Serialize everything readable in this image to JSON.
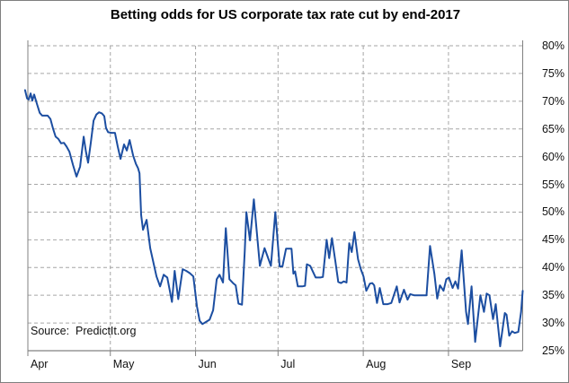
{
  "title": "Betting odds for US corporate tax rate cut by end-2017",
  "source_note": "Source:  PredictIt.org",
  "colors": {
    "line": "#1c4ea1",
    "grid": "#a6a6a6",
    "axis": "#808080",
    "text": "#111111",
    "background": "#ffffff"
  },
  "chart_data": {
    "type": "line",
    "title": "Betting odds for US corporate tax rate cut by end-2017",
    "series_name": "PredictIt betting odds of US corporate tax rate cut by end-2017 (%)",
    "xlabel": "",
    "ylabel": "",
    "x_unit": "days since Apr 1, 2017",
    "xlim": [
      -1,
      181
    ],
    "ylim": [
      25,
      80
    ],
    "grid": "dashed",
    "legend": "none",
    "y_axis_side": "right",
    "y_ticks": [
      25,
      30,
      35,
      40,
      45,
      50,
      55,
      60,
      65,
      70,
      75,
      80
    ],
    "y_tick_suffix": "%",
    "x_tick_days": [
      0,
      30,
      61,
      91,
      122,
      153
    ],
    "x_tick_labels": [
      "Apr",
      "May",
      "Jun",
      "Jul",
      "Aug",
      "Sep"
    ],
    "points": [
      [
        -1.0,
        72.0
      ],
      [
        -0.3,
        70.5
      ],
      [
        0.3,
        70.3
      ],
      [
        1.0,
        71.4
      ],
      [
        1.6,
        70.1
      ],
      [
        2.3,
        71.2
      ],
      [
        3.3,
        69.5
      ],
      [
        4.3,
        67.9
      ],
      [
        5.2,
        67.4
      ],
      [
        6.2,
        67.4
      ],
      [
        7.2,
        67.4
      ],
      [
        8.2,
        66.8
      ],
      [
        9.2,
        65.0
      ],
      [
        10.1,
        63.6
      ],
      [
        11.1,
        63.2
      ],
      [
        12.1,
        62.4
      ],
      [
        13.1,
        62.5
      ],
      [
        14.1,
        61.8
      ],
      [
        15.1,
        60.9
      ],
      [
        16.4,
        58.5
      ],
      [
        17.7,
        56.4
      ],
      [
        19.0,
        58.2
      ],
      [
        20.3,
        63.6
      ],
      [
        21.1,
        61.0
      ],
      [
        21.9,
        58.9
      ],
      [
        22.9,
        62.5
      ],
      [
        23.9,
        66.5
      ],
      [
        24.9,
        67.6
      ],
      [
        25.9,
        68.0
      ],
      [
        26.9,
        67.8
      ],
      [
        27.8,
        67.3
      ],
      [
        28.4,
        65.2
      ],
      [
        29.2,
        64.4
      ],
      [
        30.4,
        64.3
      ],
      [
        31.7,
        64.3
      ],
      [
        32.7,
        61.8
      ],
      [
        33.7,
        59.6
      ],
      [
        35.0,
        62.2
      ],
      [
        36.0,
        61.1
      ],
      [
        37.0,
        63.0
      ],
      [
        38.3,
        60.2
      ],
      [
        39.3,
        58.7
      ],
      [
        40.1,
        57.9
      ],
      [
        40.6,
        57.0
      ],
      [
        41.2,
        49.5
      ],
      [
        41.9,
        46.8
      ],
      [
        43.2,
        48.6
      ],
      [
        44.5,
        43.5
      ],
      [
        46.8,
        38.4
      ],
      [
        48.1,
        36.6
      ],
      [
        49.4,
        38.7
      ],
      [
        50.7,
        38.2
      ],
      [
        52.4,
        33.8
      ],
      [
        53.4,
        39.4
      ],
      [
        54.7,
        34.3
      ],
      [
        56.3,
        39.7
      ],
      [
        57.6,
        39.4
      ],
      [
        58.9,
        39.0
      ],
      [
        60.2,
        38.4
      ],
      [
        61.5,
        33.0
      ],
      [
        62.5,
        30.4
      ],
      [
        63.5,
        29.8
      ],
      [
        64.8,
        30.2
      ],
      [
        66.1,
        30.6
      ],
      [
        67.4,
        32.3
      ],
      [
        68.7,
        37.9
      ],
      [
        69.7,
        38.7
      ],
      [
        71.0,
        37.3
      ],
      [
        72.0,
        47.1
      ],
      [
        73.3,
        37.9
      ],
      [
        74.6,
        37.2
      ],
      [
        75.6,
        36.8
      ],
      [
        76.6,
        33.5
      ],
      [
        77.9,
        33.3
      ],
      [
        78.9,
        43.0
      ],
      [
        79.5,
        50.0
      ],
      [
        80.8,
        44.9
      ],
      [
        82.2,
        52.3
      ],
      [
        84.4,
        40.3
      ],
      [
        86.1,
        43.5
      ],
      [
        88.4,
        40.3
      ],
      [
        90.0,
        50.0
      ],
      [
        91.6,
        40.2
      ],
      [
        92.6,
        40.2
      ],
      [
        93.9,
        43.4
      ],
      [
        95.9,
        43.4
      ],
      [
        96.6,
        38.9
      ],
      [
        97.2,
        39.3
      ],
      [
        98.2,
        36.6
      ],
      [
        99.8,
        36.6
      ],
      [
        100.8,
        36.7
      ],
      [
        101.5,
        40.6
      ],
      [
        102.7,
        40.3
      ],
      [
        104.7,
        38.2
      ],
      [
        106.4,
        38.2
      ],
      [
        107.3,
        38.3
      ],
      [
        108.7,
        45.0
      ],
      [
        109.6,
        41.7
      ],
      [
        110.6,
        45.3
      ],
      [
        111.9,
        41.0
      ],
      [
        112.9,
        37.4
      ],
      [
        113.9,
        37.2
      ],
      [
        114.9,
        37.5
      ],
      [
        115.9,
        37.3
      ],
      [
        116.9,
        44.4
      ],
      [
        117.8,
        42.8
      ],
      [
        118.8,
        46.4
      ],
      [
        120.1,
        41.5
      ],
      [
        121.1,
        39.7
      ],
      [
        122.1,
        38.4
      ],
      [
        123.1,
        35.8
      ],
      [
        124.4,
        37.1
      ],
      [
        125.3,
        37.2
      ],
      [
        126.0,
        36.8
      ],
      [
        127.0,
        33.6
      ],
      [
        128.0,
        36.3
      ],
      [
        129.3,
        33.4
      ],
      [
        130.9,
        33.4
      ],
      [
        132.2,
        33.6
      ],
      [
        134.2,
        36.6
      ],
      [
        135.2,
        33.7
      ],
      [
        136.8,
        36.0
      ],
      [
        138.1,
        34.2
      ],
      [
        139.1,
        35.2
      ],
      [
        140.5,
        35.0
      ],
      [
        145.0,
        35.0
      ],
      [
        146.3,
        43.9
      ],
      [
        147.9,
        38.8
      ],
      [
        148.9,
        34.4
      ],
      [
        149.9,
        36.8
      ],
      [
        151.2,
        35.8
      ],
      [
        152.2,
        37.9
      ],
      [
        153.2,
        38.2
      ],
      [
        154.5,
        36.3
      ],
      [
        155.5,
        37.5
      ],
      [
        156.5,
        36.2
      ],
      [
        157.8,
        43.1
      ],
      [
        159.4,
        32.0
      ],
      [
        160.1,
        29.8
      ],
      [
        161.4,
        36.6
      ],
      [
        162.7,
        26.6
      ],
      [
        164.6,
        35.0
      ],
      [
        165.9,
        32.0
      ],
      [
        166.9,
        35.3
      ],
      [
        167.9,
        35.0
      ],
      [
        169.2,
        30.7
      ],
      [
        170.2,
        33.4
      ],
      [
        171.8,
        25.8
      ],
      [
        173.5,
        31.8
      ],
      [
        174.1,
        31.5
      ],
      [
        175.1,
        27.7
      ],
      [
        176.1,
        28.5
      ],
      [
        177.1,
        28.2
      ],
      [
        178.4,
        28.4
      ],
      [
        179.4,
        32.0
      ],
      [
        180.0,
        35.8
      ]
    ]
  }
}
